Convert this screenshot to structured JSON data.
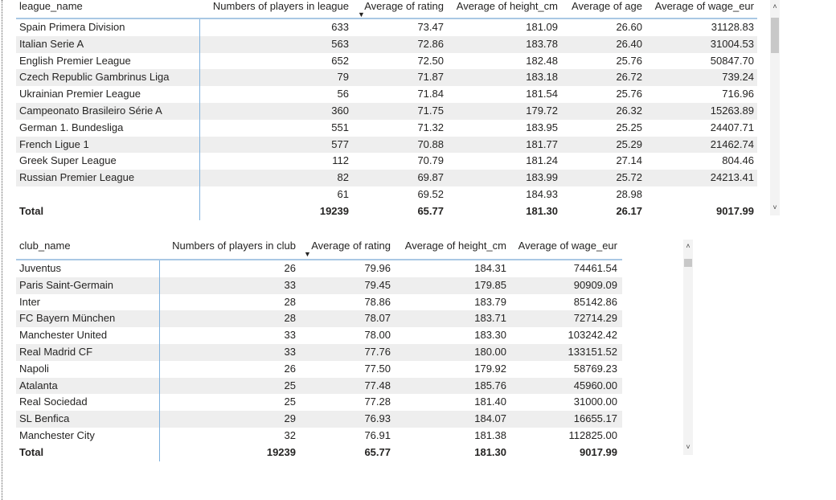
{
  "league_table": {
    "columns": [
      {
        "label": "league_name"
      },
      {
        "label": "Numbers of players in league"
      },
      {
        "label": "Average of rating",
        "sorted": "desc"
      },
      {
        "label": "Average of height_cm"
      },
      {
        "label": "Average of age"
      },
      {
        "label": "Average of wage_eur"
      }
    ],
    "rows": [
      [
        "Spain Primera Division",
        "633",
        "73.47",
        "181.09",
        "26.60",
        "31128.83"
      ],
      [
        "Italian Serie A",
        "563",
        "72.86",
        "183.78",
        "26.40",
        "31004.53"
      ],
      [
        "English Premier League",
        "652",
        "72.50",
        "182.48",
        "25.76",
        "50847.70"
      ],
      [
        "Czech Republic Gambrinus Liga",
        "79",
        "71.87",
        "183.18",
        "26.72",
        "739.24"
      ],
      [
        "Ukrainian Premier League",
        "56",
        "71.84",
        "181.54",
        "25.76",
        "716.96"
      ],
      [
        "Campeonato Brasileiro Série A",
        "360",
        "71.75",
        "179.72",
        "26.32",
        "15263.89"
      ],
      [
        "German 1. Bundesliga",
        "551",
        "71.32",
        "183.95",
        "25.25",
        "24407.71"
      ],
      [
        "French Ligue 1",
        "577",
        "70.88",
        "181.77",
        "25.29",
        "21462.74"
      ],
      [
        "Greek Super League",
        "112",
        "70.79",
        "181.24",
        "27.14",
        "804.46"
      ],
      [
        "Russian Premier League",
        "82",
        "69.87",
        "183.99",
        "25.72",
        "24213.41"
      ],
      [
        "",
        "61",
        "69.52",
        "184.93",
        "28.98",
        ""
      ]
    ],
    "total": [
      "Total",
      "19239",
      "65.77",
      "181.30",
      "26.17",
      "9017.99"
    ],
    "scroll_position": 0.0
  },
  "club_table": {
    "columns": [
      {
        "label": "club_name"
      },
      {
        "label": "Numbers of players in club"
      },
      {
        "label": "Average of rating",
        "sorted": "desc"
      },
      {
        "label": "Average of height_cm"
      },
      {
        "label": "Average of wage_eur"
      }
    ],
    "rows": [
      [
        "Juventus",
        "26",
        "79.96",
        "184.31",
        "74461.54"
      ],
      [
        "Paris Saint-Germain",
        "33",
        "79.45",
        "179.85",
        "90909.09"
      ],
      [
        "Inter",
        "28",
        "78.86",
        "183.79",
        "85142.86"
      ],
      [
        "FC Bayern München",
        "28",
        "78.07",
        "183.71",
        "72714.29"
      ],
      [
        "Manchester United",
        "33",
        "78.00",
        "183.30",
        "103242.42"
      ],
      [
        "Real Madrid CF",
        "33",
        "77.76",
        "180.00",
        "133151.52"
      ],
      [
        "Napoli",
        "26",
        "77.50",
        "179.92",
        "58769.23"
      ],
      [
        "Atalanta",
        "25",
        "77.48",
        "185.76",
        "45960.00"
      ],
      [
        "Real Sociedad",
        "25",
        "77.28",
        "181.40",
        "31000.00"
      ],
      [
        "SL Benfica",
        "29",
        "76.93",
        "184.07",
        "16655.17"
      ],
      [
        "Manchester City",
        "32",
        "76.91",
        "181.38",
        "112825.00"
      ]
    ],
    "total": [
      "Total",
      "19239",
      "65.77",
      "181.30",
      "9017.99"
    ],
    "scroll_position": 0.0
  },
  "icons": {
    "sort": "sort-descending-icon",
    "scroll_up": "chevron-up-icon",
    "scroll_down": "chevron-down-icon"
  },
  "colors": {
    "header_border": "#a9c8e4",
    "column_divider": "#7fb2df",
    "alt_row": "#eeeeee"
  }
}
